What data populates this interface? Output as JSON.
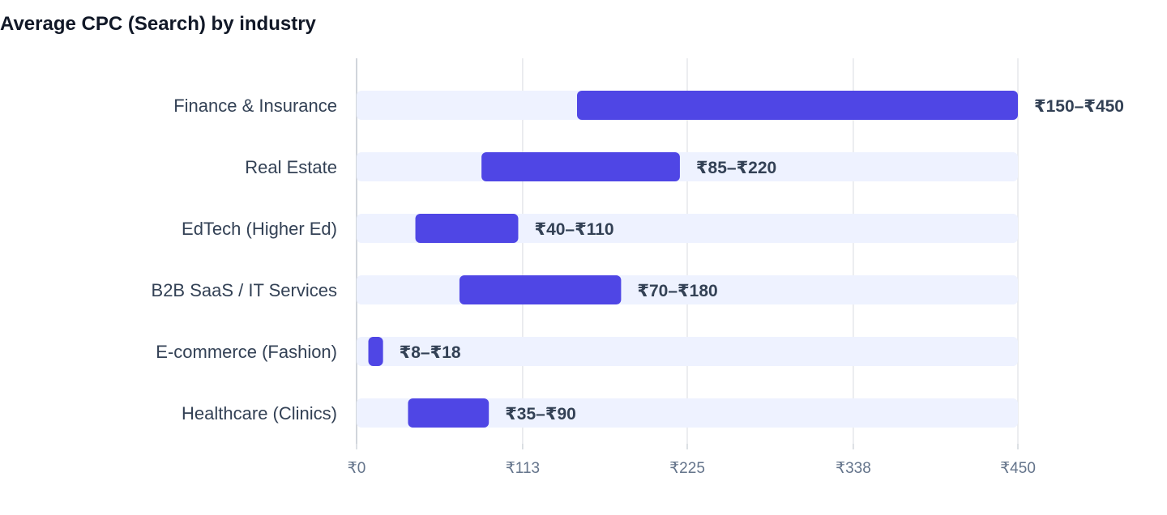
{
  "chart_data": {
    "type": "bar",
    "orientation": "horizontal",
    "subtype": "range",
    "title": "Average CPC (Search) by industry",
    "xlabel": "",
    "ylabel": "",
    "xlim": [
      0,
      450
    ],
    "x_ticks": [
      0,
      113,
      225,
      338,
      450
    ],
    "x_tick_labels": [
      "₹0",
      "₹113",
      "₹225",
      "₹338",
      "₹450"
    ],
    "grid": true,
    "categories": [
      "Finance & Insurance",
      "Real Estate",
      "EdTech (Higher Ed)",
      "B2B SaaS / IT Services",
      "E-commerce (Fashion)",
      "Healthcare (Clinics)"
    ],
    "series": [
      {
        "low": [
          150,
          85,
          40,
          70,
          8,
          35
        ],
        "high": [
          450,
          220,
          110,
          180,
          18,
          90
        ]
      }
    ],
    "data_labels": [
      "₹150–₹450",
      "₹85–₹220",
      "₹40–₹110",
      "₹70–₹180",
      "₹8–₹18",
      "₹35–₹90"
    ],
    "colors": {
      "bar": "#4f46e5",
      "track": "#eef2ff",
      "grid": "#e5e7eb",
      "axis": "#d1d5db"
    }
  }
}
